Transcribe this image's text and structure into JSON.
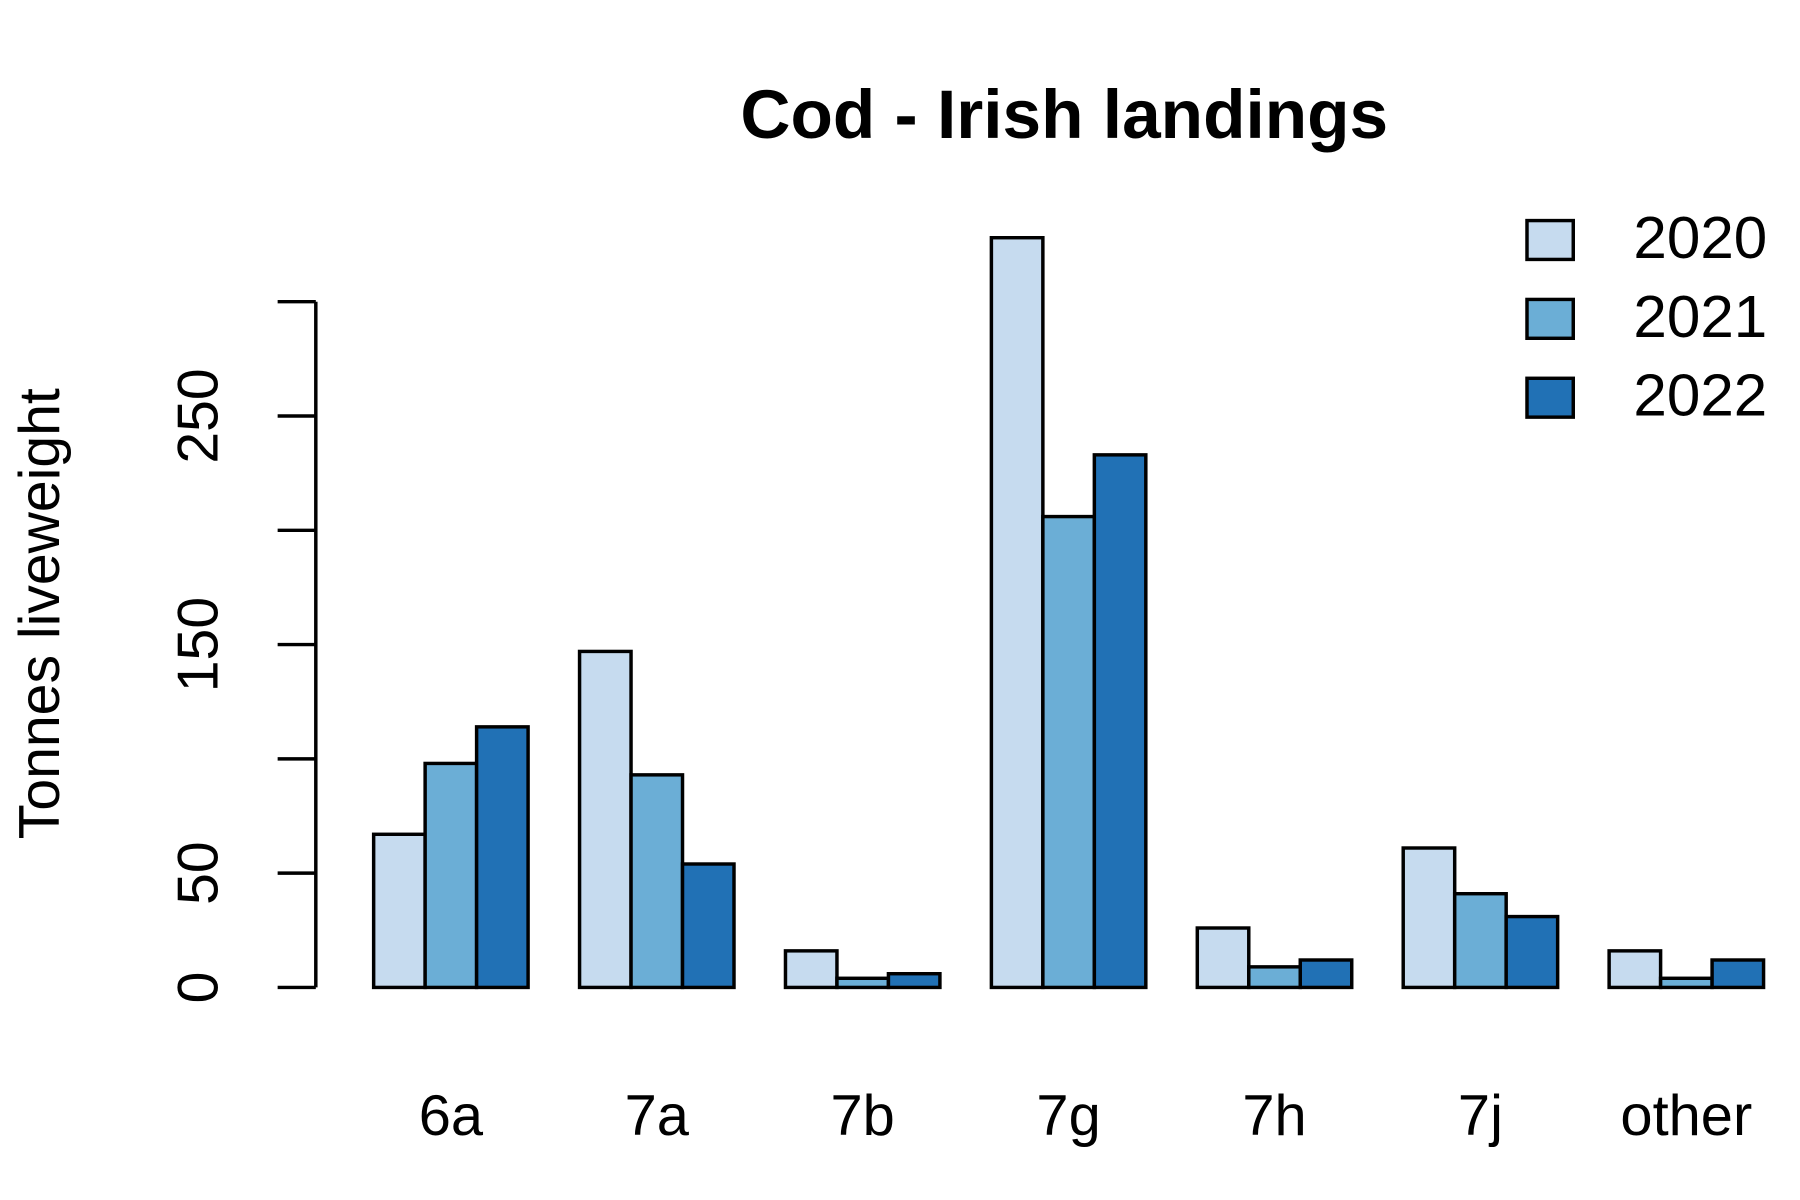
{
  "chart_data": {
    "type": "bar",
    "title": "Cod - Irish landings",
    "y_label": "Tonnes liveweight",
    "categories": [
      "6a",
      "7a",
      "7b",
      "7g",
      "7h",
      "7j",
      "other"
    ],
    "series": [
      {
        "name": "2020",
        "color": "#c6dbef",
        "values": [
          67,
          147,
          16,
          328,
          26,
          61,
          16
        ]
      },
      {
        "name": "2021",
        "color": "#6baed6",
        "values": [
          98,
          93,
          4,
          206,
          9,
          41,
          4
        ]
      },
      {
        "name": "2022",
        "color": "#2171b5",
        "values": [
          114,
          54,
          6,
          233,
          12,
          31,
          12
        ]
      }
    ],
    "ylim": [
      0,
      330
    ],
    "yticks": [
      0,
      50,
      {
        "value": 100,
        "label": null
      },
      150,
      {
        "value": 200,
        "label": null
      },
      250,
      {
        "value": 300,
        "label": null
      }
    ],
    "legend_position": "topright",
    "grid": false
  }
}
